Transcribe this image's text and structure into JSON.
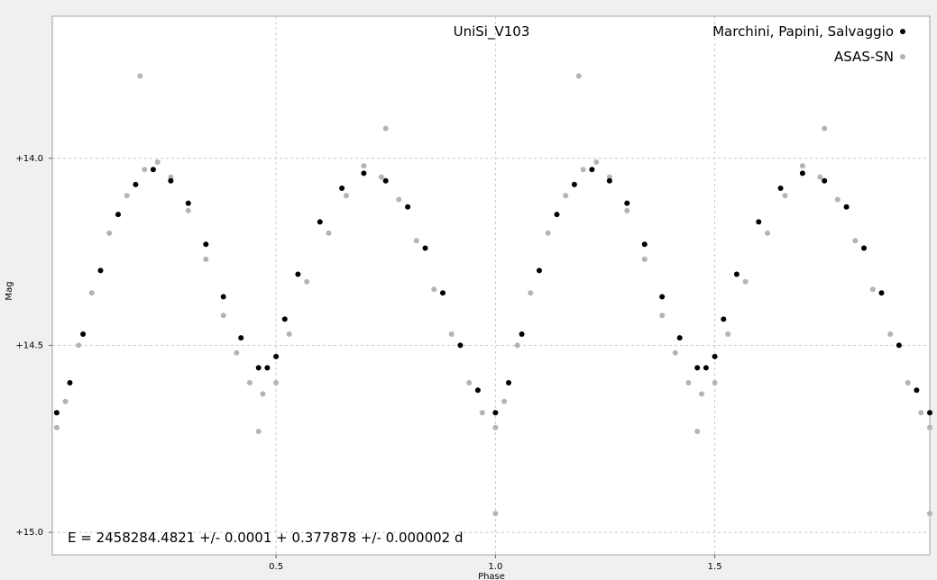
{
  "chart_data": {
    "type": "scatter",
    "title": "UniSi_V103",
    "xlabel": "Phase",
    "ylabel": "Mag",
    "xlim": [
      -0.01,
      1.99
    ],
    "ylim": [
      15.06,
      13.62
    ],
    "y_inverted": true,
    "grid": true,
    "legend_position": "top-right",
    "x_ticks": [
      {
        "value": 0.5,
        "label": "0.5"
      },
      {
        "value": 1.0,
        "label": "1.0"
      },
      {
        "value": 1.5,
        "label": "1.5"
      }
    ],
    "y_ticks": [
      {
        "value": 14.0,
        "label": "+14.0"
      },
      {
        "value": 14.5,
        "label": "+14.5"
      },
      {
        "value": 15.0,
        "label": "+15.0"
      }
    ],
    "annotation": "E = 2458284.4821 +/- 0.0001 + 0.377878 +/- 0.000002 d",
    "series": [
      {
        "name": "Marchini, Papini, Salvaggio",
        "color": "#000000",
        "x": [
          0.0,
          0.03,
          0.06,
          0.1,
          0.14,
          0.18,
          0.22,
          0.26,
          0.3,
          0.34,
          0.38,
          0.42,
          0.46,
          0.48,
          0.5,
          0.52,
          0.55,
          0.6,
          0.65,
          0.7,
          0.75,
          0.8,
          0.84,
          0.88,
          0.92,
          0.96,
          1.0,
          1.03,
          1.06,
          1.1,
          1.14,
          1.18,
          1.22,
          1.26,
          1.3,
          1.34,
          1.38,
          1.42,
          1.46,
          1.48,
          1.5,
          1.52,
          1.55,
          1.6,
          1.65,
          1.7,
          1.75,
          1.8,
          1.84,
          1.88,
          1.92,
          1.96,
          1.99
        ],
        "y": [
          14.68,
          14.6,
          14.47,
          14.3,
          14.15,
          14.07,
          14.03,
          14.06,
          14.12,
          14.23,
          14.37,
          14.48,
          14.56,
          14.56,
          14.53,
          14.43,
          14.31,
          14.17,
          14.08,
          14.04,
          14.06,
          14.13,
          14.24,
          14.36,
          14.5,
          14.62,
          14.68,
          14.6,
          14.47,
          14.3,
          14.15,
          14.07,
          14.03,
          14.06,
          14.12,
          14.23,
          14.37,
          14.48,
          14.56,
          14.56,
          14.53,
          14.43,
          14.31,
          14.17,
          14.08,
          14.04,
          14.06,
          14.13,
          14.24,
          14.36,
          14.5,
          14.62,
          14.68
        ]
      },
      {
        "name": "ASAS-SN",
        "color": "#b4b4b4",
        "x": [
          0.0,
          0.02,
          0.05,
          0.08,
          0.12,
          0.16,
          0.2,
          0.23,
          0.26,
          0.3,
          0.34,
          0.38,
          0.41,
          0.44,
          0.47,
          0.5,
          0.53,
          0.57,
          0.62,
          0.66,
          0.7,
          0.74,
          0.78,
          0.82,
          0.86,
          0.9,
          0.94,
          0.97,
          1.0,
          1.02,
          1.05,
          1.08,
          1.12,
          1.16,
          1.2,
          1.23,
          1.26,
          1.3,
          1.34,
          1.38,
          1.41,
          1.44,
          1.47,
          1.5,
          1.53,
          1.57,
          1.62,
          1.66,
          1.7,
          1.74,
          1.78,
          1.82,
          1.86,
          1.9,
          1.94,
          1.97,
          1.99,
          0.19,
          0.75,
          1.19,
          1.75,
          0.46,
          1.46,
          1.0,
          1.99
        ],
        "y": [
          14.72,
          14.65,
          14.5,
          14.36,
          14.2,
          14.1,
          14.03,
          14.01,
          14.05,
          14.14,
          14.27,
          14.42,
          14.52,
          14.6,
          14.63,
          14.6,
          14.47,
          14.33,
          14.2,
          14.1,
          14.02,
          14.05,
          14.11,
          14.22,
          14.35,
          14.47,
          14.6,
          14.68,
          14.72,
          14.65,
          14.5,
          14.36,
          14.2,
          14.1,
          14.03,
          14.01,
          14.05,
          14.14,
          14.27,
          14.42,
          14.52,
          14.6,
          14.63,
          14.6,
          14.47,
          14.33,
          14.2,
          14.1,
          14.02,
          14.05,
          14.11,
          14.22,
          14.35,
          14.47,
          14.6,
          14.68,
          14.72,
          13.78,
          13.92,
          13.78,
          13.92,
          14.73,
          14.73,
          14.95,
          14.95
        ]
      }
    ]
  }
}
